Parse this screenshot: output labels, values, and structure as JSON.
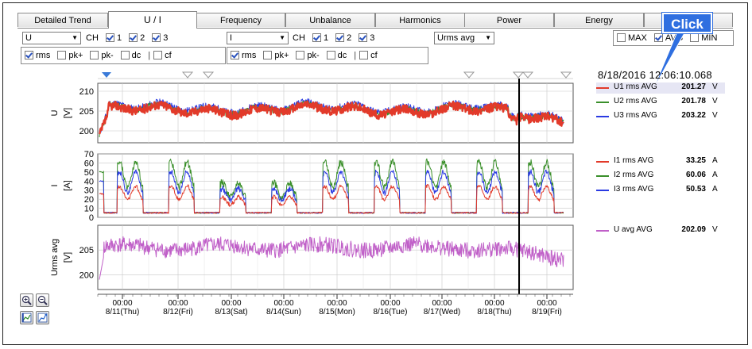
{
  "tabs": [
    {
      "label": "Detailed Trend",
      "active": false
    },
    {
      "label": "U / I",
      "active": true
    },
    {
      "label": "Frequency",
      "active": false
    },
    {
      "label": "Unbalance",
      "active": false
    },
    {
      "label": "Harmonics",
      "active": false
    },
    {
      "label": "Power",
      "active": false
    },
    {
      "label": "Energy",
      "active": false
    },
    {
      "label": "",
      "active": false
    }
  ],
  "left_group": {
    "select_value": "U",
    "ch_label": "CH",
    "ch": [
      {
        "label": "1",
        "checked": true
      },
      {
        "label": "2",
        "checked": true
      },
      {
        "label": "3",
        "checked": true
      }
    ],
    "opts": [
      {
        "label": "rms",
        "checked": true
      },
      {
        "label": "pk+",
        "checked": false
      },
      {
        "label": "pk-",
        "checked": false
      },
      {
        "label": "dc",
        "checked": false
      },
      {
        "label": "cf",
        "checked": false
      }
    ]
  },
  "right_group": {
    "select_value": "I",
    "ch_label": "CH",
    "ch": [
      {
        "label": "1",
        "checked": true
      },
      {
        "label": "2",
        "checked": true
      },
      {
        "label": "3",
        "checked": true
      }
    ],
    "opts": [
      {
        "label": "rms",
        "checked": true
      },
      {
        "label": "pk+",
        "checked": false
      },
      {
        "label": "pk-",
        "checked": false
      },
      {
        "label": "dc",
        "checked": false
      },
      {
        "label": "cf",
        "checked": false
      }
    ]
  },
  "extra_select": "Urms avg",
  "stat_opts": [
    {
      "label": "MAX",
      "checked": false
    },
    {
      "label": "AVG",
      "checked": true
    },
    {
      "label": "MIN",
      "checked": false
    }
  ],
  "callout": "Click",
  "cursor_datetime": "8/18/2016 12:06:10.068",
  "legend": {
    "u": [
      {
        "name": "U1 rms AVG",
        "value": "201.27",
        "unit": "V",
        "color": "#e23a2a",
        "selected": true
      },
      {
        "name": "U2 rms AVG",
        "value": "201.78",
        "unit": "V",
        "color": "#3a8f2a"
      },
      {
        "name": "U3 rms AVG",
        "value": "203.22",
        "unit": "V",
        "color": "#2a3ae2"
      }
    ],
    "i": [
      {
        "name": "I1 rms AVG",
        "value": "33.25",
        "unit": "A",
        "color": "#e23a2a"
      },
      {
        "name": "I2 rms AVG",
        "value": "60.06",
        "unit": "A",
        "color": "#3a8f2a"
      },
      {
        "name": "I3 rms AVG",
        "value": "50.53",
        "unit": "A",
        "color": "#2a3ae2"
      }
    ],
    "uavg": [
      {
        "name": "U avg AVG",
        "value": "202.09",
        "unit": "V",
        "color": "#c060c8"
      }
    ]
  },
  "charts": {
    "u": {
      "ylabel": "U",
      "unit": "[V]",
      "ticks": [
        "210",
        "205",
        "200"
      ],
      "ylim": [
        197,
        212
      ]
    },
    "i": {
      "ylabel": "I",
      "unit": "[A]",
      "ticks": [
        "70",
        "60",
        "50",
        "40",
        "30",
        "20",
        "10",
        "0"
      ],
      "ylim": [
        0,
        70
      ]
    },
    "uavg": {
      "ylabel": "Urms avg",
      "unit": "[V]",
      "ticks": [
        "205",
        "200"
      ],
      "ylim": [
        197,
        210
      ]
    }
  },
  "xaxis": [
    {
      "time": "00:00",
      "date": "8/11(Thu)"
    },
    {
      "time": "00:00",
      "date": "8/12(Fri)"
    },
    {
      "time": "00:00",
      "date": "8/13(Sat)"
    },
    {
      "time": "00:00",
      "date": "8/14(Sun)"
    },
    {
      "time": "00:00",
      "date": "8/15(Mon)"
    },
    {
      "time": "00:00",
      "date": "8/16(Tue)"
    },
    {
      "time": "00:00",
      "date": "8/17(Wed)"
    },
    {
      "time": "00:00",
      "date": "8/18(Thu)"
    },
    {
      "time": "00:00",
      "date": "8/19(Fri)"
    }
  ],
  "tool_icons": [
    "zoom-in-icon",
    "zoom-out-icon",
    "auto-scale-icon",
    "trend-icon"
  ]
}
